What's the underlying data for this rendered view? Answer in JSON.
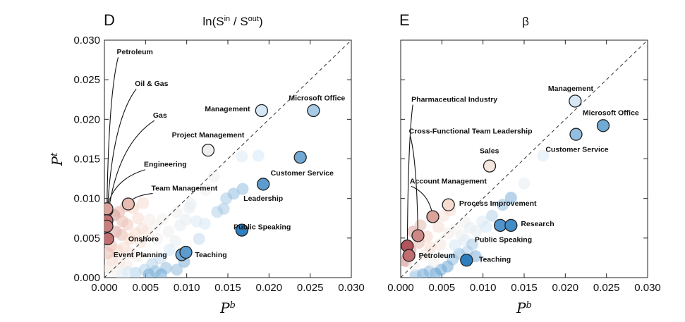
{
  "colors": {
    "red_dark": "#b2545a",
    "red_light": "#f6d6c7",
    "blue_dark": "#2e7fc0",
    "blue_light": "#d6e8f5",
    "neutral": "#f4f0ef",
    "outline": "#222222"
  },
  "chart_data": [
    {
      "type": "scatter",
      "panel": "D",
      "title": "ln(S^in / S^out)",
      "title_base": "ln(S",
      "title_sup1": "in",
      "title_mid": " / S",
      "title_sup2": "out",
      "title_end": ")",
      "xlabel": "P",
      "xlabel_sup": "b",
      "ylabel": "P",
      "ylabel_sup": "t",
      "xlim": [
        0,
        0.03
      ],
      "ylim": [
        0,
        0.03
      ],
      "xticks": [
        "0.000",
        "0.005",
        "0.010",
        "0.015",
        "0.020",
        "0.025",
        "0.030"
      ],
      "yticks": [
        "0.000",
        "0.005",
        "0.010",
        "0.015",
        "0.020",
        "0.025",
        "0.030"
      ],
      "diagonal": "y = x (dashed)",
      "highlighted": [
        {
          "label": "Petroleum",
          "x": 0.0003,
          "y": 0.0085,
          "color": 0.0,
          "label_x": 0.0015,
          "label_y": 0.0282,
          "leader": true
        },
        {
          "label": "Oil & Gas",
          "x": 0.0003,
          "y": 0.0072,
          "color": 0.05,
          "label_x": 0.0037,
          "label_y": 0.0242,
          "leader": true
        },
        {
          "label": "Gas",
          "x": 0.0003,
          "y": 0.0065,
          "color": 0.08,
          "label_x": 0.0059,
          "label_y": 0.0202,
          "leader": true
        },
        {
          "label": "Engineering",
          "x": 0.0003,
          "y": 0.0087,
          "color": 0.15,
          "label_x": 0.0048,
          "label_y": 0.014,
          "leader": true
        },
        {
          "label": "Team Management",
          "x": 0.0029,
          "y": 0.0093,
          "color": 0.2,
          "label_x": 0.0057,
          "label_y": 0.011,
          "leader": true
        },
        {
          "label": "Onshore",
          "x": 0.0004,
          "y": 0.0049,
          "color": 0.05,
          "label_x": 0.0029,
          "label_y": 0.0046,
          "leader": false
        },
        {
          "label": "Project Management",
          "x": 0.0126,
          "y": 0.0161,
          "color": 0.55,
          "label_x": 0.0082,
          "label_y": 0.0177,
          "leader": false
        },
        {
          "label": "Management",
          "x": 0.0191,
          "y": 0.0211,
          "color": 0.75,
          "label_x": 0.0122,
          "label_y": 0.021,
          "leader": false
        },
        {
          "label": "Microsoft Office",
          "x": 0.0254,
          "y": 0.0211,
          "color": 0.82,
          "label_x": 0.0224,
          "label_y": 0.0224,
          "leader": false
        },
        {
          "label": "Customer Service",
          "x": 0.0238,
          "y": 0.0152,
          "color": 0.9,
          "label_x": 0.0202,
          "label_y": 0.0129,
          "leader": false
        },
        {
          "label": "Leadership",
          "x": 0.0193,
          "y": 0.0118,
          "color": 0.93,
          "label_x": 0.0169,
          "label_y": 0.0097,
          "leader": false
        },
        {
          "label": "Public Speaking",
          "x": 0.0167,
          "y": 0.006,
          "color": 1.0,
          "label_x": 0.0157,
          "label_y": 0.0061,
          "leader": false
        },
        {
          "label": "Event Planning",
          "x": 0.0094,
          "y": 0.0029,
          "color": 0.9,
          "label_x": 0.0011,
          "label_y": 0.0026,
          "leader": false
        },
        {
          "label": "Teaching",
          "x": 0.0099,
          "y": 0.0032,
          "color": 0.93,
          "label_x": 0.011,
          "label_y": 0.0026,
          "leader": false
        }
      ],
      "background": [
        [
          0.0012,
          0.0079,
          0.12
        ],
        [
          0.0018,
          0.0083,
          0.18
        ],
        [
          0.0022,
          0.0071,
          0.2
        ],
        [
          0.0028,
          0.0067,
          0.22
        ],
        [
          0.0035,
          0.0088,
          0.25
        ],
        [
          0.0041,
          0.0075,
          0.3
        ],
        [
          0.0046,
          0.0062,
          0.32
        ],
        [
          0.0052,
          0.0058,
          0.4
        ],
        [
          0.0014,
          0.0058,
          0.15
        ],
        [
          0.0021,
          0.0054,
          0.2
        ],
        [
          0.0031,
          0.0049,
          0.25
        ],
        [
          0.0038,
          0.0056,
          0.3
        ],
        [
          0.0044,
          0.0045,
          0.35
        ],
        [
          0.0008,
          0.004,
          0.2
        ],
        [
          0.0015,
          0.0035,
          0.25
        ],
        [
          0.0024,
          0.0038,
          0.3
        ],
        [
          0.0032,
          0.0031,
          0.4
        ],
        [
          0.004,
          0.0027,
          0.45
        ],
        [
          0.0009,
          0.0022,
          0.3
        ],
        [
          0.0018,
          0.0019,
          0.38
        ],
        [
          0.0027,
          0.0016,
          0.45
        ],
        [
          0.0055,
          0.0073,
          0.45
        ],
        [
          0.0062,
          0.0066,
          0.5
        ],
        [
          0.0071,
          0.0074,
          0.5
        ],
        [
          0.0064,
          0.0049,
          0.52
        ],
        [
          0.0078,
          0.0058,
          0.55
        ],
        [
          0.0086,
          0.0046,
          0.6
        ],
        [
          0.0092,
          0.0066,
          0.62
        ],
        [
          0.0103,
          0.0088,
          0.6
        ],
        [
          0.0112,
          0.0071,
          0.7
        ],
        [
          0.0122,
          0.0068,
          0.75
        ],
        [
          0.0137,
          0.0083,
          0.8
        ],
        [
          0.0148,
          0.01,
          0.82
        ],
        [
          0.0157,
          0.0106,
          0.85
        ],
        [
          0.0145,
          0.0087,
          0.82
        ],
        [
          0.0168,
          0.0112,
          0.85
        ],
        [
          0.0167,
          0.0153,
          0.7
        ],
        [
          0.0187,
          0.0154,
          0.75
        ],
        [
          0.0115,
          0.0049,
          0.78
        ],
        [
          0.0079,
          0.0035,
          0.75
        ],
        [
          0.0068,
          0.0024,
          0.78
        ],
        [
          0.0058,
          0.0017,
          0.8
        ],
        [
          0.0075,
          0.0012,
          0.85
        ],
        [
          0.0088,
          0.001,
          0.85
        ],
        [
          0.0062,
          0.0008,
          0.85
        ],
        [
          0.0049,
          0.001,
          0.8
        ],
        [
          0.0038,
          0.0006,
          0.8
        ],
        [
          0.0029,
          0.0007,
          0.75
        ],
        [
          0.0021,
          0.0004,
          0.7
        ],
        [
          0.0054,
          0.0004,
          0.9
        ],
        [
          0.0069,
          0.0004,
          0.9
        ],
        [
          0.0097,
          0.002,
          0.88
        ],
        [
          0.0105,
          0.0093,
          0.58
        ],
        [
          0.0123,
          0.0111,
          0.55
        ],
        [
          0.0133,
          0.0128,
          0.55
        ],
        [
          0.0099,
          0.0073,
          0.6
        ],
        [
          0.0088,
          0.0082,
          0.55
        ],
        [
          0.0006,
          0.0012,
          0.4
        ],
        [
          0.0012,
          0.0009,
          0.5
        ],
        [
          0.0004,
          0.0031,
          0.2
        ],
        [
          0.0026,
          0.009,
          0.22
        ],
        [
          0.0047,
          0.0094,
          0.3
        ]
      ]
    },
    {
      "type": "scatter",
      "panel": "E",
      "title": "β",
      "xlabel": "P",
      "xlabel_sup": "b",
      "ylabel": "",
      "xlim": [
        0,
        0.03
      ],
      "ylim": [
        0,
        0.03
      ],
      "xticks": [
        "0.000",
        "0.005",
        "0.010",
        "0.015",
        "0.020",
        "0.025",
        "0.030"
      ],
      "yticks": [],
      "diagonal": "y = x (dashed)",
      "highlighted": [
        {
          "label": "Pharmaceutical Industry",
          "x": 0.0008,
          "y": 0.004,
          "color": 0.0,
          "label_x": 0.0013,
          "label_y": 0.0222,
          "leader": true
        },
        {
          "label": "Cross-Functional Team Leadership",
          "x": 0.0021,
          "y": 0.0053,
          "color": 0.1,
          "label_x": 0.001,
          "label_y": 0.0182,
          "leader": true
        },
        {
          "label": "Account Management",
          "x": 0.0039,
          "y": 0.0077,
          "color": 0.15,
          "label_x": 0.0011,
          "label_y": 0.0119,
          "leader": true
        },
        {
          "label": "Sales",
          "x": 0.0108,
          "y": 0.0141,
          "color": 0.4,
          "label_x": 0.0096,
          "label_y": 0.0157,
          "leader": false
        },
        {
          "label": "Process Improvement",
          "x": 0.0058,
          "y": 0.0092,
          "color": 0.3,
          "label_x": 0.0071,
          "label_y": 0.0091,
          "leader": false
        },
        {
          "label": "Management",
          "x": 0.0212,
          "y": 0.0223,
          "color": 0.75,
          "label_x": 0.0179,
          "label_y": 0.0236,
          "leader": false
        },
        {
          "label": "Microsoft Office",
          "x": 0.0246,
          "y": 0.0192,
          "color": 0.9,
          "label_x": 0.0221,
          "label_y": 0.0205,
          "leader": false
        },
        {
          "label": "Customer Service",
          "x": 0.0213,
          "y": 0.0181,
          "color": 0.85,
          "label_x": 0.0176,
          "label_y": 0.0159,
          "leader": false
        },
        {
          "label": "Research",
          "x": 0.0121,
          "y": 0.0066,
          "color": 0.95,
          "label_x": 0.0146,
          "label_y": 0.0065,
          "leader": false
        },
        {
          "label": "Public Speaking",
          "x": 0.0134,
          "y": 0.0066,
          "color": 0.97,
          "label_x": 0.009,
          "label_y": 0.0045,
          "leader": false
        },
        {
          "label": "Petroleum",
          "x": 0.001,
          "y": 0.0028,
          "color": 0.05,
          "label_x": 0.0022,
          "label_y": 0.0025,
          "leader": false
        },
        {
          "label": "Teaching",
          "x": 0.008,
          "y": 0.0022,
          "color": 1.0,
          "label_x": 0.0095,
          "label_y": 0.002,
          "leader": false
        }
      ],
      "background": [
        [
          0.0015,
          0.0058,
          0.15
        ],
        [
          0.0024,
          0.0066,
          0.2
        ],
        [
          0.0032,
          0.0052,
          0.25
        ],
        [
          0.0046,
          0.0064,
          0.32
        ],
        [
          0.0052,
          0.0078,
          0.35
        ],
        [
          0.0012,
          0.0035,
          0.15
        ],
        [
          0.0022,
          0.0044,
          0.2
        ],
        [
          0.0036,
          0.0038,
          0.3
        ],
        [
          0.0048,
          0.0042,
          0.38
        ],
        [
          0.0058,
          0.0056,
          0.45
        ],
        [
          0.0066,
          0.0061,
          0.5
        ],
        [
          0.0074,
          0.0053,
          0.55
        ],
        [
          0.0078,
          0.007,
          0.55
        ],
        [
          0.0084,
          0.0063,
          0.6
        ],
        [
          0.0092,
          0.0059,
          0.62
        ],
        [
          0.0099,
          0.0071,
          0.7
        ],
        [
          0.0111,
          0.0078,
          0.8
        ],
        [
          0.0124,
          0.0092,
          0.85
        ],
        [
          0.0134,
          0.0101,
          0.88
        ],
        [
          0.0104,
          0.0064,
          0.75
        ],
        [
          0.0078,
          0.0047,
          0.7
        ],
        [
          0.0081,
          0.0033,
          0.8
        ],
        [
          0.0071,
          0.003,
          0.85
        ],
        [
          0.0063,
          0.0023,
          0.85
        ],
        [
          0.0057,
          0.0014,
          0.9
        ],
        [
          0.0049,
          0.001,
          0.9
        ],
        [
          0.0042,
          0.0005,
          0.92
        ],
        [
          0.0035,
          0.0008,
          0.85
        ],
        [
          0.0027,
          0.0004,
          0.9
        ],
        [
          0.0018,
          0.0003,
          0.85
        ],
        [
          0.0066,
          0.0041,
          0.75
        ],
        [
          0.0087,
          0.0042,
          0.82
        ],
        [
          0.0091,
          0.0027,
          0.88
        ],
        [
          0.0173,
          0.0154,
          0.7
        ],
        [
          0.015,
          0.0119,
          0.6
        ],
        [
          0.0029,
          0.0029,
          0.4
        ],
        [
          0.004,
          0.002,
          0.55
        ],
        [
          0.0006,
          0.0021,
          0.1
        ],
        [
          0.0016,
          0.0015,
          0.5
        ],
        [
          0.006,
          0.0085,
          0.3
        ]
      ]
    }
  ]
}
